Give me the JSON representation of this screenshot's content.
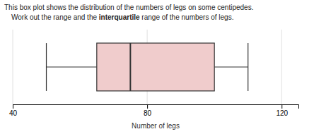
{
  "chart_data": {
    "type": "box",
    "title": "This box plot shows the distribution of the numbers of legs on some centipedes.",
    "subtitle": [
      "Work out the range and the ",
      "interquartile",
      " range of the numbers of legs."
    ],
    "xlabel": "Number of legs",
    "values": {
      "whisker_low": 50,
      "q1": 65,
      "median": 75,
      "q3": 100,
      "whisker_high": 110
    },
    "color": "#f0cccc",
    "xlim": [
      40,
      125
    ],
    "xticks": [
      40,
      80,
      120
    ],
    "grid": true,
    "tick_labels": "x"
  }
}
